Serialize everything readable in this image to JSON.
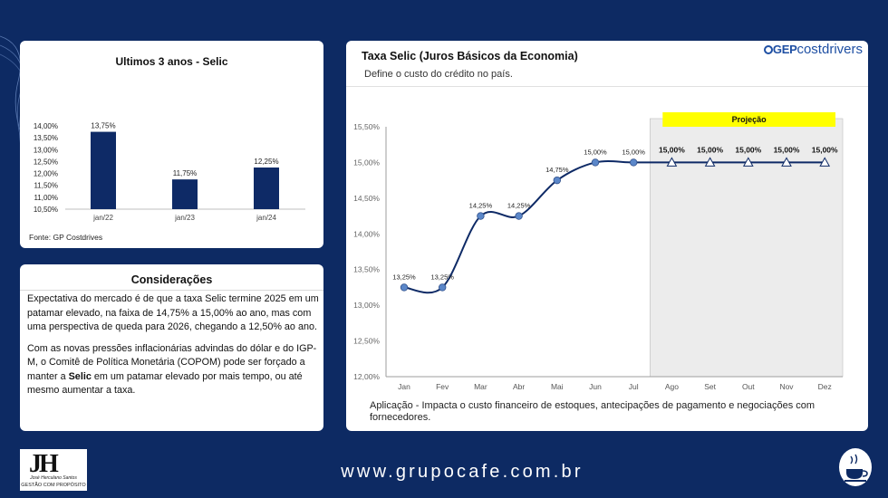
{
  "hist": {
    "title": "Ultimos 3 anos - Selic",
    "source": "Fonte: GP Costdrives"
  },
  "considerations": {
    "title": "Considerações",
    "p1": "Expectativa do mercado é de que a taxa Selic termine 2025 em um patamar elevado, na faixa de 14,75% a 15,00% ao ano, mas com uma perspectiva de queda para 2026, chegando a 12,50% ao ano.",
    "p2_before": "Com as novas pressões inflacionárias advindas do dólar e do IGP-M, o Comitê de Política Monetária (COPOM) pode ser forçado a manter a ",
    "p2_bold": "Selic",
    "p2_after": " em um patamar elevado por mais tempo, ou até mesmo aumentar a taxa."
  },
  "main": {
    "title": "Taxa Selic (Juros Básicos da Economia)",
    "subtitle": "Define o custo do crédito no país.",
    "application": "Aplicação - Impacta o custo financeiro de estoques, antecipações de pagamento e negociações com fornecedores.",
    "logo_gep": "GEP",
    "logo_cost": "costdrivers"
  },
  "footer": {
    "url": "www.grupocafe.com.br",
    "jh_mark": "JH",
    "jh_name": "José Herculano Santos",
    "jh_tagline": "GESTÃO COM PROPÓSITO"
  },
  "colors": {
    "navy": "#0d2a63",
    "bar": "#0e2a66",
    "line": "#0e2a66",
    "point": "#5b87c9",
    "projection_bg": "#ececec",
    "projection_label_bg": "#ffff00"
  },
  "chart_data": [
    {
      "type": "bar",
      "title": "Ultimos 3 anos - Selic",
      "categories": [
        "jan/22",
        "jan/23",
        "jan/24"
      ],
      "values": [
        13.75,
        11.75,
        12.25
      ],
      "value_labels": [
        "13,75%",
        "11,75%",
        "12,25%"
      ],
      "ylim": [
        10.5,
        14.0
      ],
      "y_ticks": [
        "14,00%",
        "13,50%",
        "13,00%",
        "12,50%",
        "12,00%",
        "11,50%",
        "11,00%",
        "10,50%"
      ],
      "grid": false,
      "legend": "none"
    },
    {
      "type": "line",
      "title": "Taxa Selic (Juros Básicos da Economia)",
      "categories": [
        "Jan",
        "Fev",
        "Mar",
        "Abr",
        "Mai",
        "Jun",
        "Jul",
        "Ago",
        "Set",
        "Out",
        "Nov",
        "Dez"
      ],
      "values": [
        13.25,
        13.25,
        14.25,
        14.25,
        14.75,
        15.0,
        15.0,
        15.0,
        15.0,
        15.0,
        15.0,
        15.0
      ],
      "value_labels": [
        "13,25%",
        "13,25%",
        "14,25%",
        "14,25%",
        "14,75%",
        "15,00%",
        "15,00%",
        "15,00%",
        "15,00%",
        "15,00%",
        "15,00%",
        "15,00%"
      ],
      "projection_start": "Ago",
      "projection_label": "Projeção",
      "ylim": [
        12.0,
        15.5
      ],
      "y_ticks": [
        "15,50%",
        "15,00%",
        "14,50%",
        "14,00%",
        "13,50%",
        "13,00%",
        "12,50%",
        "12,00%"
      ],
      "grid": false,
      "legend": "none"
    }
  ]
}
